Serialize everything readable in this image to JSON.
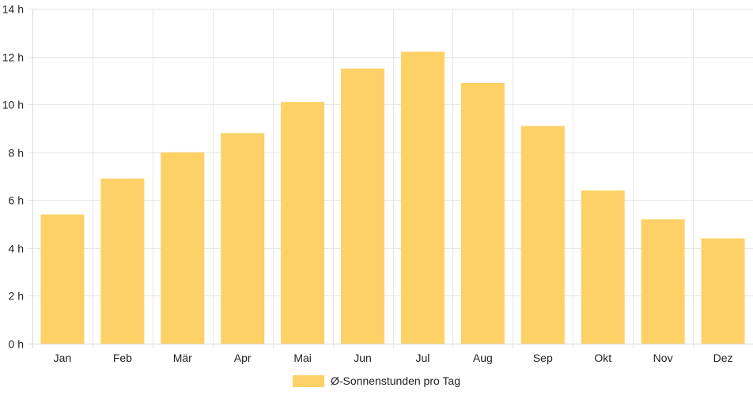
{
  "chart_data": {
    "type": "bar",
    "categories": [
      "Jan",
      "Feb",
      "Mär",
      "Apr",
      "Mai",
      "Jun",
      "Jul",
      "Aug",
      "Sep",
      "Okt",
      "Nov",
      "Dez"
    ],
    "series": [
      {
        "name": "Ø-Sonnenstunden pro Tag",
        "values": [
          5.4,
          6.9,
          8.0,
          8.8,
          10.1,
          11.5,
          12.2,
          10.9,
          9.1,
          6.4,
          5.2,
          4.4
        ]
      }
    ],
    "ylim": [
      0,
      14
    ],
    "yticks": [
      0,
      2,
      4,
      6,
      8,
      10,
      12,
      14
    ],
    "ytick_suffix": " h",
    "grid": true,
    "legend_position": "bottom",
    "colors": {
      "bar": "#fed166",
      "grid": "#e6e6e6",
      "axis": "#d9d9d9"
    }
  }
}
